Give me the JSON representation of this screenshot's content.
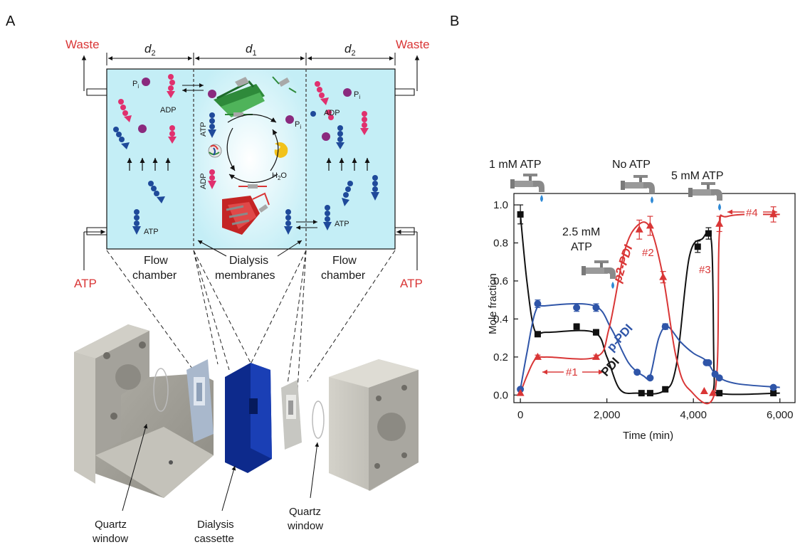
{
  "panels": {
    "a": "A",
    "b": "B"
  },
  "schematic": {
    "waste_left": "Waste",
    "waste_right": "Waste",
    "atp_left": "ATP",
    "atp_right": "ATP",
    "d2_left": "d",
    "d2_left_sub": "2",
    "d1": "d",
    "d1_sub": "1",
    "d2_right": "d",
    "d2_right_sub": "2",
    "pi_left": "P",
    "pi_left_sub": "i",
    "pi_right": "P",
    "pi_right_sub": "i",
    "pi_center": "P",
    "pi_center_sub": "i",
    "adp_left": "ADP",
    "adp_right": "ADP",
    "atp_left_inner": "ATP",
    "atp_right_inner": "ATP",
    "atp_center": "ATP",
    "adp_center": "ADP",
    "h2o": "H",
    "h2o_sub": "2",
    "h2o_end": "O",
    "flow_chamber_left_1": "Flow",
    "flow_chamber_left_2": "chamber",
    "dialysis_1": "Dialysis",
    "dialysis_2": "membranes",
    "flow_chamber_right_1": "Flow",
    "flow_chamber_right_2": "chamber",
    "quartz_left_1": "Quartz",
    "quartz_left_2": "window",
    "cassette_1": "Dialysis",
    "cassette_2": "cassette",
    "quartz_right_1": "Quartz",
    "quartz_right_2": "window",
    "colors": {
      "chamber": "#c4eef6",
      "red": "#d93636",
      "atp_blue": "#1f4a9a",
      "adp_pink": "#e0306e",
      "pi_purple": "#8a2a7e",
      "cassette": "#0d2a8c"
    }
  },
  "chart_data": {
    "type": "line",
    "xlabel": "Time (min)",
    "ylabel": "Mole fraction",
    "xlim": [
      -150,
      6350
    ],
    "ylim": [
      -0.04,
      1.06
    ],
    "xticks": [
      0,
      2000,
      4000,
      6000
    ],
    "xtick_labels": [
      "0",
      "2,000",
      "4,000",
      "6,000"
    ],
    "yticks": [
      0.0,
      0.2,
      0.4,
      0.6,
      0.8,
      1.0
    ],
    "ytick_labels": [
      "0.0",
      "0.2",
      "0.4",
      "0.6",
      "0.8",
      "1.0"
    ],
    "series": [
      {
        "name": "PDI",
        "color": "#111111",
        "marker": "square",
        "points": [
          [
            0,
            0.95
          ],
          [
            400,
            0.32
          ],
          [
            1300,
            0.36
          ],
          [
            1750,
            0.33
          ],
          [
            2800,
            0.01
          ],
          [
            3000,
            0.01
          ],
          [
            3350,
            0.03
          ],
          [
            4100,
            0.78
          ],
          [
            4350,
            0.85
          ],
          [
            4600,
            0.01
          ],
          [
            5850,
            0.01
          ]
        ],
        "errors": [
          0.05,
          0.01,
          0.015,
          0.015,
          0.005,
          0.005,
          0.005,
          0.03,
          0.03,
          0.005,
          0.005
        ],
        "curve": [
          [
            0,
            0.95
          ],
          [
            150,
            0.6
          ],
          [
            330,
            0.34
          ],
          [
            600,
            0.33
          ],
          [
            1700,
            0.33
          ],
          [
            2000,
            0.2
          ],
          [
            2300,
            0.03
          ],
          [
            2700,
            0.01
          ],
          [
            3300,
            0.02
          ],
          [
            3600,
            0.15
          ],
          [
            3900,
            0.72
          ],
          [
            4200,
            0.82
          ],
          [
            4420,
            0.8
          ],
          [
            4480,
            0.1
          ],
          [
            4560,
            0.01
          ],
          [
            6000,
            0.01
          ]
        ]
      },
      {
        "name": "p-PDI",
        "color": "#2f55a8",
        "marker": "circle",
        "points": [
          [
            0,
            0.03
          ],
          [
            400,
            0.48
          ],
          [
            1300,
            0.46
          ],
          [
            1750,
            0.46
          ],
          [
            2700,
            0.12
          ],
          [
            3000,
            0.09
          ],
          [
            3350,
            0.36
          ],
          [
            4300,
            0.17
          ],
          [
            4350,
            0.17
          ],
          [
            4500,
            0.11
          ],
          [
            4600,
            0.09
          ],
          [
            5850,
            0.04
          ]
        ],
        "errors": [
          0.005,
          0.02,
          0.02,
          0.02,
          0.01,
          0.01,
          0.015,
          0.01,
          0.01,
          0.01,
          0.01,
          0.005
        ],
        "curve": [
          [
            0,
            0.03
          ],
          [
            150,
            0.22
          ],
          [
            350,
            0.44
          ],
          [
            600,
            0.47
          ],
          [
            1700,
            0.47
          ],
          [
            2100,
            0.35
          ],
          [
            2500,
            0.17
          ],
          [
            2850,
            0.1
          ],
          [
            3000,
            0.1
          ],
          [
            3200,
            0.3
          ],
          [
            3400,
            0.36
          ],
          [
            3700,
            0.28
          ],
          [
            4000,
            0.22
          ],
          [
            4300,
            0.18
          ],
          [
            4550,
            0.1
          ],
          [
            5000,
            0.06
          ],
          [
            6000,
            0.04
          ]
        ]
      },
      {
        "name": "p2-PDI",
        "color": "#d93636",
        "marker": "triangle",
        "points": [
          [
            0,
            0.01
          ],
          [
            400,
            0.2
          ],
          [
            1750,
            0.2
          ],
          [
            2750,
            0.87
          ],
          [
            3000,
            0.89
          ],
          [
            3300,
            0.62
          ],
          [
            4250,
            0.02
          ],
          [
            4450,
            0.01
          ],
          [
            4600,
            0.9
          ],
          [
            5850,
            0.95
          ]
        ],
        "errors": [
          0.005,
          0.01,
          0.01,
          0.05,
          0.05,
          0.03,
          0.005,
          0.005,
          0.04,
          0.04
        ],
        "curve": [
          [
            0,
            0.01
          ],
          [
            150,
            0.1
          ],
          [
            350,
            0.19
          ],
          [
            600,
            0.2
          ],
          [
            1750,
            0.2
          ],
          [
            2050,
            0.35
          ],
          [
            2400,
            0.75
          ],
          [
            2700,
            0.89
          ],
          [
            3000,
            0.88
          ],
          [
            3300,
            0.62
          ],
          [
            3600,
            0.2
          ],
          [
            3900,
            0.03
          ],
          [
            4500,
            0.02
          ],
          [
            4600,
            0.85
          ],
          [
            4800,
            0.94
          ],
          [
            6000,
            0.95
          ]
        ]
      }
    ],
    "annotations": {
      "atp1": "1 mM ATP",
      "atp25_1": "2.5 mM",
      "atp25_2": "ATP",
      "noatp": "No ATP",
      "atp5": "5 mM ATP",
      "region1": "#1",
      "region2": "#2",
      "region3": "#3",
      "region4": "#4"
    }
  }
}
